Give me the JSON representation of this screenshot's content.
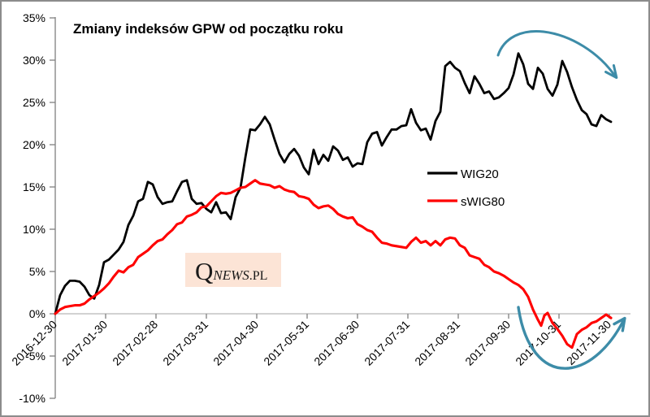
{
  "chart_data": {
    "type": "line",
    "title": "Zmiany indeksów GPW od początku roku",
    "xlabel": "",
    "ylabel": "",
    "y_unit": "%",
    "ylim": [
      -10,
      35
    ],
    "grid": false,
    "legend_position": "center-right",
    "x_axis_note": "pos = linear chart position in days from 2016-12-30; month-end ticks evenly spaced",
    "x_range_days": 342,
    "y_ticks": [
      {
        "label": "35%",
        "value": 35
      },
      {
        "label": "30%",
        "value": 30
      },
      {
        "label": "25%",
        "value": 25
      },
      {
        "label": "20%",
        "value": 20
      },
      {
        "label": "15%",
        "value": 15
      },
      {
        "label": "10%",
        "value": 10
      },
      {
        "label": "5%",
        "value": 5
      },
      {
        "label": "0%",
        "value": 0
      },
      {
        "label": "-5%",
        "value": -5
      },
      {
        "label": "-10%",
        "value": -10
      }
    ],
    "x_ticks": [
      {
        "label": "2016-12-30",
        "pos": 0
      },
      {
        "label": "2017-01-30",
        "pos": 31
      },
      {
        "label": "2017-02-28",
        "pos": 62
      },
      {
        "label": "2017-03-31",
        "pos": 93
      },
      {
        "label": "2017-04-30",
        "pos": 124
      },
      {
        "label": "2017-05-31",
        "pos": 155
      },
      {
        "label": "2017-06-30",
        "pos": 186
      },
      {
        "label": "2017-07-31",
        "pos": 217
      },
      {
        "label": "2017-08-31",
        "pos": 248
      },
      {
        "label": "2017-09-30",
        "pos": 279
      },
      {
        "label": "2017-10-31",
        "pos": 310
      },
      {
        "label": "2017-11-30",
        "pos": 341
      }
    ],
    "series": [
      {
        "name": "WIG20",
        "color": "#000000",
        "points": [
          [
            0,
            0
          ],
          [
            3,
            2.2
          ],
          [
            6,
            3.3
          ],
          [
            9,
            3.9
          ],
          [
            12,
            3.9
          ],
          [
            15,
            3.8
          ],
          [
            18,
            3.2
          ],
          [
            21,
            2.2
          ],
          [
            24,
            1.8
          ],
          [
            27,
            3.4
          ],
          [
            30,
            6.1
          ],
          [
            33,
            6.4
          ],
          [
            36,
            7.0
          ],
          [
            39,
            7.6
          ],
          [
            42,
            8.5
          ],
          [
            45,
            10.5
          ],
          [
            48,
            11.6
          ],
          [
            51,
            13.3
          ],
          [
            54,
            13.6
          ],
          [
            57,
            15.6
          ],
          [
            60,
            15.3
          ],
          [
            63,
            13.8
          ],
          [
            66,
            13.0
          ],
          [
            69,
            13.2
          ],
          [
            72,
            13.3
          ],
          [
            75,
            14.5
          ],
          [
            78,
            15.6
          ],
          [
            81,
            15.8
          ],
          [
            84,
            13.6
          ],
          [
            87,
            13.0
          ],
          [
            90,
            13.1
          ],
          [
            93,
            12.4
          ],
          [
            96,
            12.0
          ],
          [
            99,
            13.2
          ],
          [
            102,
            11.9
          ],
          [
            105,
            12.0
          ],
          [
            108,
            11.2
          ],
          [
            111,
            13.8
          ],
          [
            114,
            14.9
          ],
          [
            117,
            18.5
          ],
          [
            120,
            21.8
          ],
          [
            123,
            21.7
          ],
          [
            126,
            22.4
          ],
          [
            129,
            23.3
          ],
          [
            132,
            22.4
          ],
          [
            135,
            20.6
          ],
          [
            138,
            18.9
          ],
          [
            141,
            17.9
          ],
          [
            144,
            18.9
          ],
          [
            147,
            19.5
          ],
          [
            150,
            18.7
          ],
          [
            153,
            17.3
          ],
          [
            156,
            16.5
          ],
          [
            159,
            19.4
          ],
          [
            162,
            17.7
          ],
          [
            165,
            18.8
          ],
          [
            168,
            18.1
          ],
          [
            171,
            19.8
          ],
          [
            174,
            19.3
          ],
          [
            177,
            18.2
          ],
          [
            180,
            18.5
          ],
          [
            183,
            17.4
          ],
          [
            186,
            17.8
          ],
          [
            189,
            17.7
          ],
          [
            192,
            20.3
          ],
          [
            195,
            21.3
          ],
          [
            198,
            21.5
          ],
          [
            201,
            19.9
          ],
          [
            204,
            20.9
          ],
          [
            207,
            21.8
          ],
          [
            210,
            21.8
          ],
          [
            213,
            22.2
          ],
          [
            216,
            22.3
          ],
          [
            219,
            24.2
          ],
          [
            222,
            22.6
          ],
          [
            225,
            21.7
          ],
          [
            228,
            21.9
          ],
          [
            231,
            20.6
          ],
          [
            234,
            22.8
          ],
          [
            237,
            23.9
          ],
          [
            240,
            29.3
          ],
          [
            243,
            29.8
          ],
          [
            246,
            29.1
          ],
          [
            249,
            28.7
          ],
          [
            252,
            27.3
          ],
          [
            255,
            26.1
          ],
          [
            258,
            28.1
          ],
          [
            261,
            27.2
          ],
          [
            264,
            26.1
          ],
          [
            267,
            26.3
          ],
          [
            270,
            25.4
          ],
          [
            273,
            25.6
          ],
          [
            276,
            26.1
          ],
          [
            279,
            26.7
          ],
          [
            282,
            28.3
          ],
          [
            285,
            30.8
          ],
          [
            288,
            29.5
          ],
          [
            291,
            27.2
          ],
          [
            294,
            26.6
          ],
          [
            297,
            29.1
          ],
          [
            300,
            28.4
          ],
          [
            303,
            26.6
          ],
          [
            306,
            25.8
          ],
          [
            309,
            27.1
          ],
          [
            312,
            29.9
          ],
          [
            315,
            28.6
          ],
          [
            318,
            26.8
          ],
          [
            321,
            25.3
          ],
          [
            324,
            24.1
          ],
          [
            327,
            23.6
          ],
          [
            330,
            22.4
          ],
          [
            333,
            22.2
          ],
          [
            336,
            23.5
          ],
          [
            339,
            23.0
          ],
          [
            342,
            22.7
          ]
        ]
      },
      {
        "name": "sWIG80",
        "color": "#ff0000",
        "points": [
          [
            0,
            0
          ],
          [
            3,
            0.5
          ],
          [
            6,
            0.8
          ],
          [
            9,
            0.9
          ],
          [
            12,
            1.0
          ],
          [
            15,
            1.0
          ],
          [
            18,
            1.2
          ],
          [
            21,
            1.7
          ],
          [
            24,
            2.1
          ],
          [
            27,
            2.5
          ],
          [
            30,
            3.0
          ],
          [
            33,
            3.6
          ],
          [
            36,
            4.4
          ],
          [
            39,
            5.1
          ],
          [
            42,
            4.9
          ],
          [
            45,
            5.5
          ],
          [
            48,
            5.8
          ],
          [
            51,
            6.7
          ],
          [
            54,
            7.1
          ],
          [
            57,
            7.5
          ],
          [
            60,
            8.1
          ],
          [
            63,
            8.6
          ],
          [
            66,
            8.8
          ],
          [
            69,
            9.4
          ],
          [
            72,
            9.9
          ],
          [
            75,
            10.6
          ],
          [
            78,
            10.8
          ],
          [
            81,
            11.5
          ],
          [
            84,
            11.7
          ],
          [
            87,
            12.0
          ],
          [
            90,
            12.6
          ],
          [
            93,
            12.7
          ],
          [
            96,
            13.3
          ],
          [
            99,
            13.9
          ],
          [
            102,
            14.3
          ],
          [
            105,
            14.2
          ],
          [
            108,
            14.3
          ],
          [
            111,
            14.6
          ],
          [
            114,
            14.9
          ],
          [
            117,
            15.0
          ],
          [
            120,
            15.4
          ],
          [
            123,
            15.8
          ],
          [
            126,
            15.4
          ],
          [
            129,
            15.3
          ],
          [
            132,
            15.2
          ],
          [
            135,
            14.9
          ],
          [
            138,
            15.1
          ],
          [
            141,
            14.7
          ],
          [
            144,
            14.5
          ],
          [
            147,
            14.4
          ],
          [
            150,
            13.9
          ],
          [
            153,
            13.8
          ],
          [
            156,
            13.6
          ],
          [
            159,
            12.9
          ],
          [
            162,
            12.5
          ],
          [
            165,
            12.7
          ],
          [
            168,
            12.8
          ],
          [
            171,
            12.4
          ],
          [
            174,
            11.8
          ],
          [
            177,
            11.5
          ],
          [
            180,
            11.3
          ],
          [
            183,
            11.4
          ],
          [
            186,
            10.6
          ],
          [
            189,
            10.3
          ],
          [
            192,
            9.9
          ],
          [
            195,
            9.7
          ],
          [
            198,
            9.0
          ],
          [
            201,
            8.4
          ],
          [
            204,
            8.3
          ],
          [
            207,
            8.1
          ],
          [
            210,
            8.0
          ],
          [
            213,
            7.9
          ],
          [
            216,
            7.8
          ],
          [
            219,
            8.5
          ],
          [
            222,
            9.0
          ],
          [
            225,
            8.4
          ],
          [
            228,
            8.6
          ],
          [
            231,
            8.1
          ],
          [
            234,
            8.6
          ],
          [
            237,
            8.1
          ],
          [
            240,
            8.8
          ],
          [
            243,
            9.0
          ],
          [
            246,
            8.9
          ],
          [
            249,
            8.1
          ],
          [
            252,
            7.8
          ],
          [
            255,
            6.9
          ],
          [
            258,
            6.7
          ],
          [
            261,
            6.5
          ],
          [
            264,
            5.8
          ],
          [
            267,
            5.5
          ],
          [
            270,
            5.0
          ],
          [
            273,
            4.8
          ],
          [
            276,
            4.5
          ],
          [
            279,
            4.1
          ],
          [
            282,
            3.7
          ],
          [
            285,
            3.4
          ],
          [
            288,
            2.9
          ],
          [
            291,
            2.0
          ],
          [
            294,
            0.5
          ],
          [
            297,
            -0.7
          ],
          [
            299,
            -1.4
          ],
          [
            301,
            -0.2
          ],
          [
            303,
            0.1
          ],
          [
            306,
            -1.1
          ],
          [
            309,
            -1.8
          ],
          [
            312,
            -2.6
          ],
          [
            315,
            -3.6
          ],
          [
            318,
            -4.0
          ],
          [
            321,
            -2.4
          ],
          [
            324,
            -1.9
          ],
          [
            327,
            -1.6
          ],
          [
            330,
            -1.1
          ],
          [
            333,
            -0.9
          ],
          [
            336,
            -0.5
          ],
          [
            339,
            -0.1
          ],
          [
            342,
            -0.5
          ]
        ]
      }
    ],
    "annotations": [
      {
        "type": "arrow",
        "shape": "arc-over-peak-pointing-down-right",
        "color": "#3d8ca8",
        "note": "downturn arc drawn over WIG20 autumn peak"
      },
      {
        "type": "arrow",
        "shape": "u-curve-pointing-up-right",
        "color": "#3d8ca8",
        "note": "U-shaped recovery arrow around sWIG80 November bottom"
      }
    ]
  },
  "axes_style": {
    "axis_color": "#808080",
    "zero_line_color": "#a6a6a6",
    "frame_color": "#8c8c8c",
    "label_color": "#000000"
  },
  "watermark": {
    "text_q": "Q",
    "text_news": "NEWS",
    "text_pl": ".PL",
    "bg_color": "#fce4d6"
  }
}
